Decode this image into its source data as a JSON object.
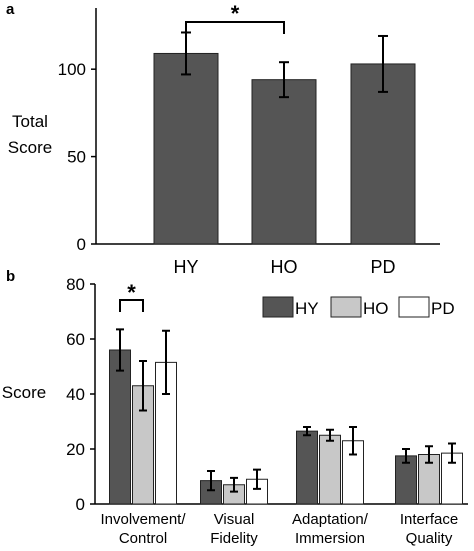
{
  "chart_data": [
    {
      "panel": "a",
      "type": "bar",
      "title": "",
      "ylabel_lines": [
        "Total",
        "Score"
      ],
      "xlabel": "",
      "ylim": [
        0,
        135
      ],
      "yticks": [
        0,
        50,
        100
      ],
      "categories": [
        "HY",
        "HO",
        "PD"
      ],
      "values": [
        109,
        94,
        103
      ],
      "error": [
        12,
        10,
        16
      ],
      "bar_color": "#555555",
      "significance": [
        {
          "from": 0,
          "to": 1,
          "label": "*"
        }
      ]
    },
    {
      "panel": "b",
      "type": "bar",
      "title": "",
      "ylabel": "Score",
      "xlabel": "",
      "ylim": [
        0,
        80
      ],
      "yticks": [
        0,
        20,
        40,
        60,
        80
      ],
      "categories": [
        {
          "lines": [
            "Involvement/",
            "Control"
          ]
        },
        {
          "lines": [
            "Visual",
            "Fidelity"
          ]
        },
        {
          "lines": [
            "Adaptation/",
            "Immersion"
          ]
        },
        {
          "lines": [
            "Interface",
            "Quality"
          ]
        }
      ],
      "series": [
        {
          "name": "HY",
          "color": "#555555",
          "values": [
            56,
            8.5,
            26.5,
            17.5
          ],
          "error": [
            7.5,
            3.5,
            1.5,
            2.5
          ]
        },
        {
          "name": "HO",
          "color": "#c8c8c8",
          "values": [
            43,
            7,
            25,
            18
          ],
          "error": [
            9,
            2.5,
            2,
            3
          ]
        },
        {
          "name": "PD",
          "color": "#ffffff",
          "values": [
            51.5,
            9,
            23,
            18.5
          ],
          "error": [
            11.5,
            3.5,
            5,
            3.5
          ]
        }
      ],
      "legend_placement": "top-right",
      "significance": [
        {
          "category": 0,
          "from_series": 0,
          "to_series": 1,
          "label": "*"
        }
      ]
    }
  ]
}
